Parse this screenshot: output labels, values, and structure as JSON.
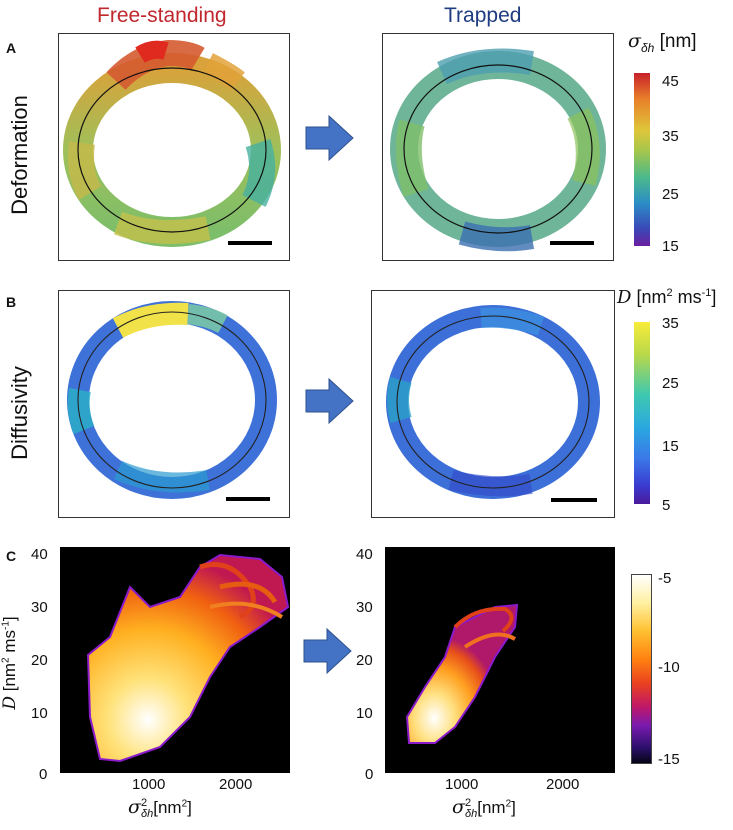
{
  "columns": {
    "left_title": "Free-standing",
    "right_title": "Trapped",
    "left_color": "#c0282d",
    "right_color": "#1f3b82"
  },
  "panel_a": {
    "letter": "A",
    "row_label": "Deformation",
    "colorbar_symbol": "σ",
    "colorbar_sub": "δh",
    "colorbar_unit": "[nm]",
    "colorbar_ticks": [
      "45",
      "35",
      "25",
      "15"
    ]
  },
  "panel_b": {
    "letter": "B",
    "row_label": "Diffusivity",
    "colorbar_symbol": "D",
    "colorbar_unit": "[nm",
    "colorbar_unit_sup": "2",
    "colorbar_unit_tail": " ms",
    "colorbar_unit_tail_sup": "-1",
    "colorbar_unit_close": "]",
    "colorbar_ticks": [
      "35",
      "25",
      "15",
      "5"
    ]
  },
  "panel_c": {
    "letter": "C",
    "ylabel_symbol": "D",
    "ylabel_unit": "[nm",
    "ylabel_sup": "2",
    "ylabel_tail": " ms",
    "ylabel_tail_sup": "-1",
    "ylabel_close": "]",
    "xlabel_symbol": "σ",
    "xlabel_sup": "2",
    "xlabel_sub": "δh",
    "xlabel_unit": "[nm",
    "xlabel_unit_sup": "2",
    "xlabel_unit_close": "]",
    "y_ticks": [
      "40",
      "30",
      "20",
      "10",
      "0"
    ],
    "x_ticks": [
      "1000",
      "2000"
    ],
    "colorbar_ticks": [
      "-5",
      "-10",
      "-15"
    ]
  },
  "colors": {
    "arrow": "#4472c4",
    "arrow_edge": "#2f528f"
  },
  "chart_data": [
    {
      "type": "heatmap",
      "panel": "C-left",
      "x_ticks": [
        1000,
        2000
      ],
      "y_ticks": [
        0,
        10,
        20,
        30,
        40
      ],
      "xlim": [
        0,
        2600
      ],
      "ylim": [
        0,
        42
      ],
      "colorbar": [
        -15,
        -5
      ],
      "extent": {
        "x": [
          300,
          2500
        ],
        "y": [
          3,
          40
        ]
      }
    },
    {
      "type": "heatmap",
      "panel": "C-right",
      "x_ticks": [
        1000,
        2000
      ],
      "y_ticks": [
        0,
        10,
        20,
        30,
        40
      ],
      "xlim": [
        0,
        2600
      ],
      "ylim": [
        0,
        42
      ],
      "colorbar": [
        -15,
        -5
      ],
      "extent": {
        "x": [
          300,
          1500
        ],
        "y": [
          4,
          24
        ]
      }
    }
  ]
}
